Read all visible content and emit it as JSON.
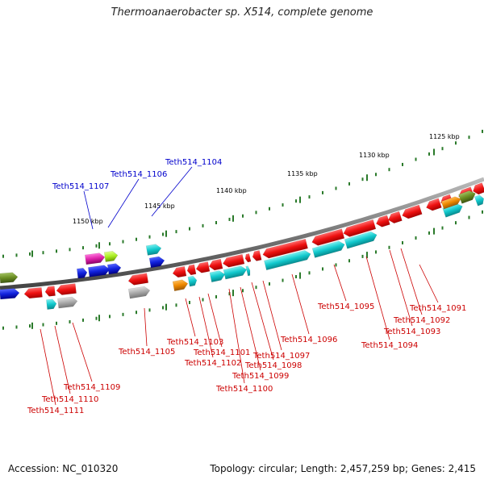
{
  "title": "Thermoanaerobacter sp. X514, complete genome",
  "footer": {
    "accession": "Accession: NC_010320",
    "summary": "Topology: circular; Length: 2,457,259 bp; Genes: 2,415"
  },
  "colors": {
    "backbone": "#808080",
    "tick": "#2a7a2a",
    "red": "#ee1111",
    "cyan": "#11c8cc",
    "blue": "#1122dd",
    "magenta": "#dd22aa",
    "green_light": "#aaee22",
    "olive": "#6b8e23",
    "orange": "#ee8800",
    "gray": "#aaaaaa",
    "label_red": "#cc0000",
    "label_blue": "#0000cc"
  },
  "ticks": [
    {
      "label": "1125 kbp"
    },
    {
      "label": "1130 kbp"
    },
    {
      "label": "1135 kbp"
    },
    {
      "label": "1140 kbp"
    },
    {
      "label": "1145 kbp"
    },
    {
      "label": "1150 kbp"
    }
  ],
  "labels_top": [
    {
      "text": "Teth514_1104"
    },
    {
      "text": "Teth514_1106"
    },
    {
      "text": "Teth514_1107"
    }
  ],
  "labels_bottom": [
    {
      "text": "Teth514_1091"
    },
    {
      "text": "Teth514_1092"
    },
    {
      "text": "Teth514_1093"
    },
    {
      "text": "Teth514_1094"
    },
    {
      "text": "Teth514_1095"
    },
    {
      "text": "Teth514_1096"
    },
    {
      "text": "Teth514_1097"
    },
    {
      "text": "Teth514_1098"
    },
    {
      "text": "Teth514_1099"
    },
    {
      "text": "Teth514_1100"
    },
    {
      "text": "Teth514_1101"
    },
    {
      "text": "Teth514_1102"
    },
    {
      "text": "Teth514_1103"
    },
    {
      "text": "Teth514_1105"
    },
    {
      "text": "Teth514_1109"
    },
    {
      "text": "Teth514_1110"
    },
    {
      "text": "Teth514_1111"
    }
  ]
}
